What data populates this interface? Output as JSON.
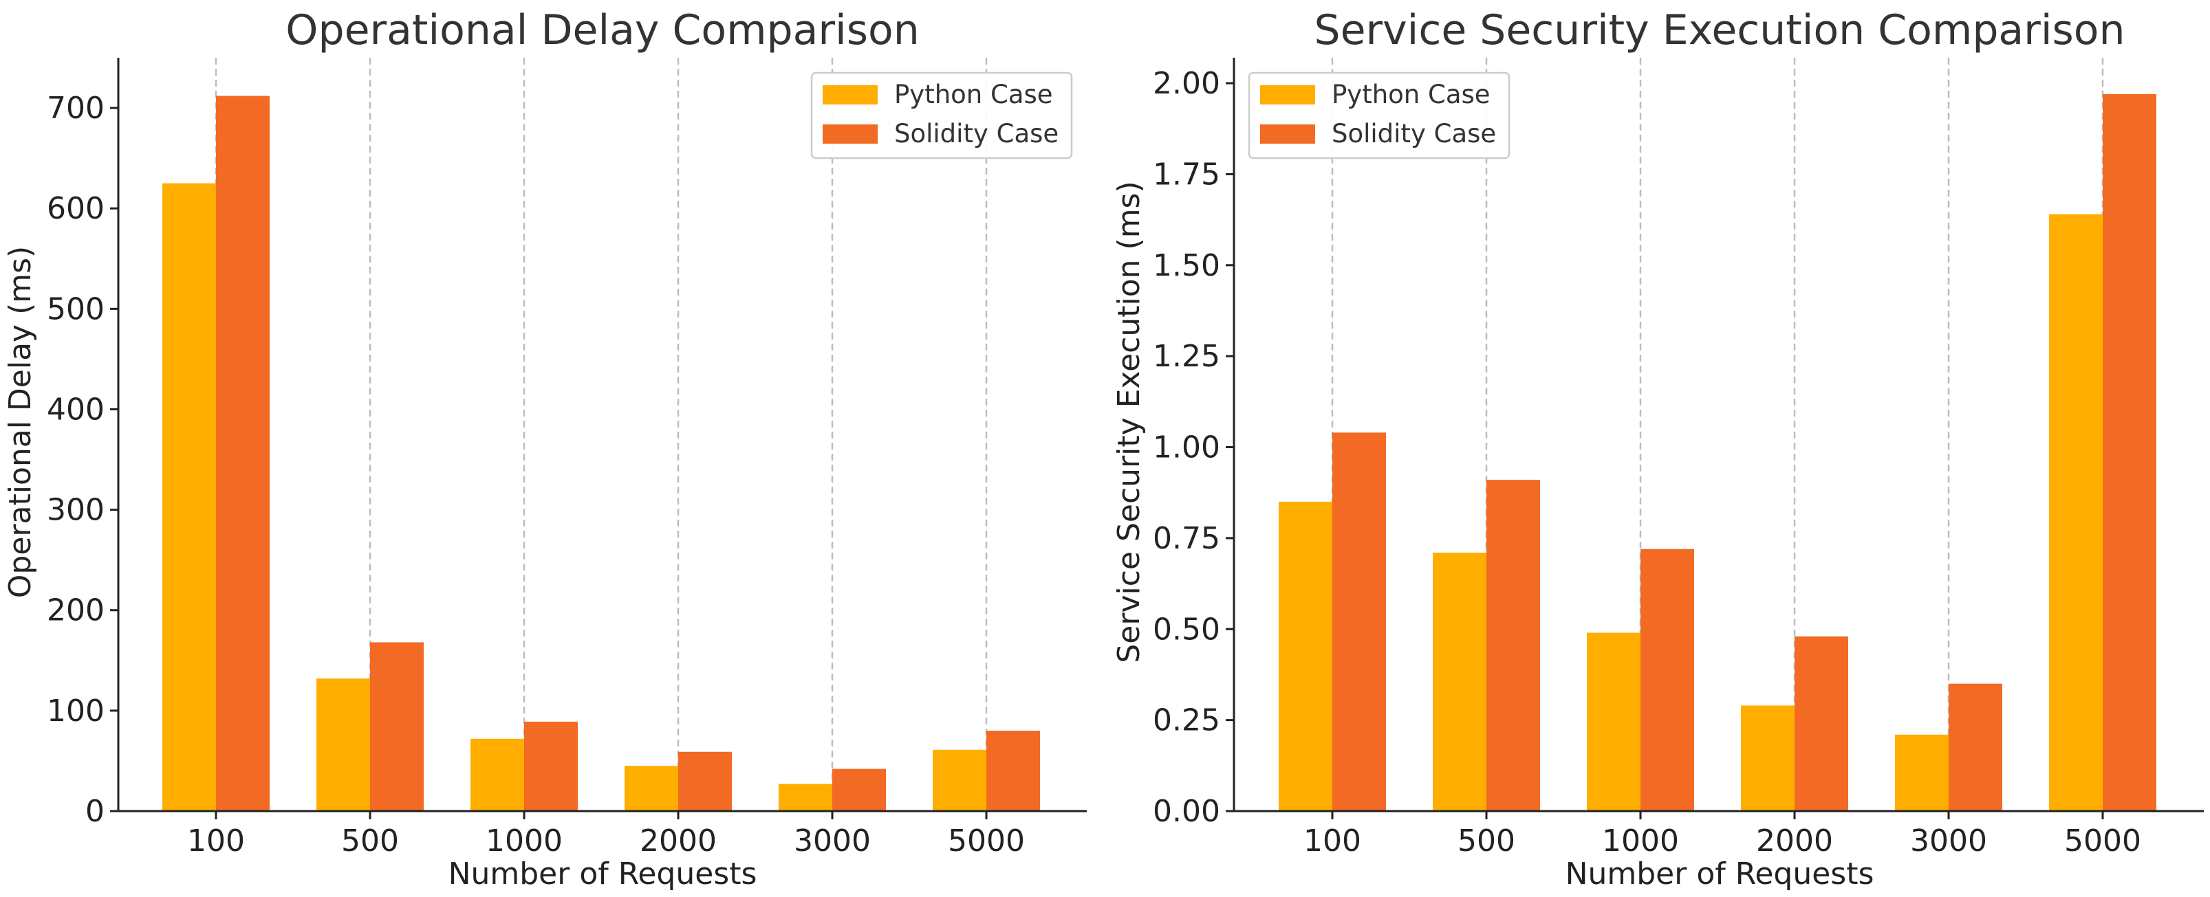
{
  "colors": {
    "python": "#FFAE00",
    "solidity": "#F26A24"
  },
  "chart_data": [
    {
      "type": "bar",
      "title": "Operational Delay Comparison",
      "xlabel": "Number of Requests",
      "ylabel": "Operational Delay (ms)",
      "categories": [
        "100",
        "500",
        "1000",
        "2000",
        "3000",
        "5000"
      ],
      "ylim": [
        0,
        750
      ],
      "yticks": [
        0,
        100,
        200,
        300,
        400,
        500,
        600,
        700
      ],
      "ytick_labels": [
        "0",
        "100",
        "200",
        "300",
        "400",
        "500",
        "600",
        "700"
      ],
      "grid": "vertical-dashed",
      "legend_position": "top-right",
      "series": [
        {
          "name": "Python Case",
          "color_key": "python",
          "values": [
            625,
            132,
            72,
            45,
            27,
            61
          ]
        },
        {
          "name": "Solidity Case",
          "color_key": "solidity",
          "values": [
            712,
            168,
            89,
            59,
            42,
            80
          ]
        }
      ]
    },
    {
      "type": "bar",
      "title": "Service Security Execution Comparison",
      "xlabel": "Number of Requests",
      "ylabel": "Service Security Execution (ms)",
      "categories": [
        "100",
        "500",
        "1000",
        "2000",
        "3000",
        "5000"
      ],
      "ylim": [
        0,
        2.07
      ],
      "yticks": [
        0,
        0.25,
        0.5,
        0.75,
        1.0,
        1.25,
        1.5,
        1.75,
        2.0
      ],
      "ytick_labels": [
        "0.00",
        "0.25",
        "0.50",
        "0.75",
        "1.00",
        "1.25",
        "1.50",
        "1.75",
        "2.00"
      ],
      "grid": "vertical-dashed",
      "legend_position": "top-left",
      "series": [
        {
          "name": "Python Case",
          "color_key": "python",
          "values": [
            0.85,
            0.71,
            0.49,
            0.29,
            0.21,
            1.64
          ]
        },
        {
          "name": "Solidity Case",
          "color_key": "solidity",
          "values": [
            1.04,
            0.91,
            0.72,
            0.48,
            0.35,
            1.97
          ]
        }
      ]
    }
  ]
}
